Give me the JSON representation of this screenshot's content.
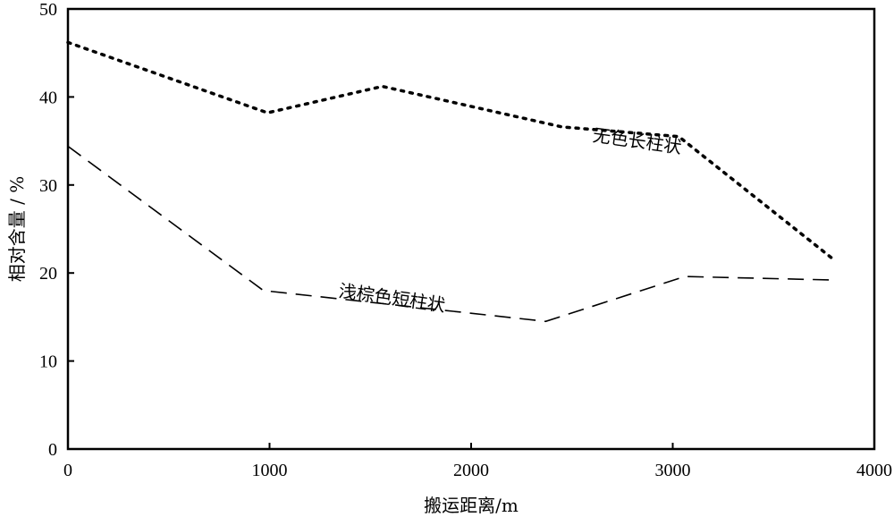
{
  "chart_data": {
    "type": "line",
    "xlabel": "搬运距离/m",
    "ylabel": "相对含量 / %",
    "xlim": [
      0,
      4000
    ],
    "ylim": [
      0,
      50
    ],
    "x_ticks": [
      0,
      1000,
      2000,
      3000,
      4000
    ],
    "y_ticks": [
      0,
      10,
      20,
      30,
      40,
      50
    ],
    "grid": false,
    "series": [
      {
        "name": "无色长柱状",
        "style": "dotted",
        "color": "#000000",
        "label_position": [
          2600,
          35
        ],
        "label_rotation": 8,
        "points": [
          [
            0,
            46.2
          ],
          [
            990,
            38.2
          ],
          [
            1560,
            41.2
          ],
          [
            2450,
            36.6
          ],
          [
            3030,
            35.5
          ],
          [
            3800,
            21.5
          ]
        ]
      },
      {
        "name": "浅棕色短柱状",
        "style": "dashed",
        "color": "#000000",
        "label_position": [
          1340,
          17.3
        ],
        "label_rotation": 8,
        "points": [
          [
            0,
            34.4
          ],
          [
            970,
            18.0
          ],
          [
            2370,
            14.5
          ],
          [
            3060,
            19.6
          ],
          [
            3800,
            19.2
          ]
        ]
      }
    ]
  }
}
